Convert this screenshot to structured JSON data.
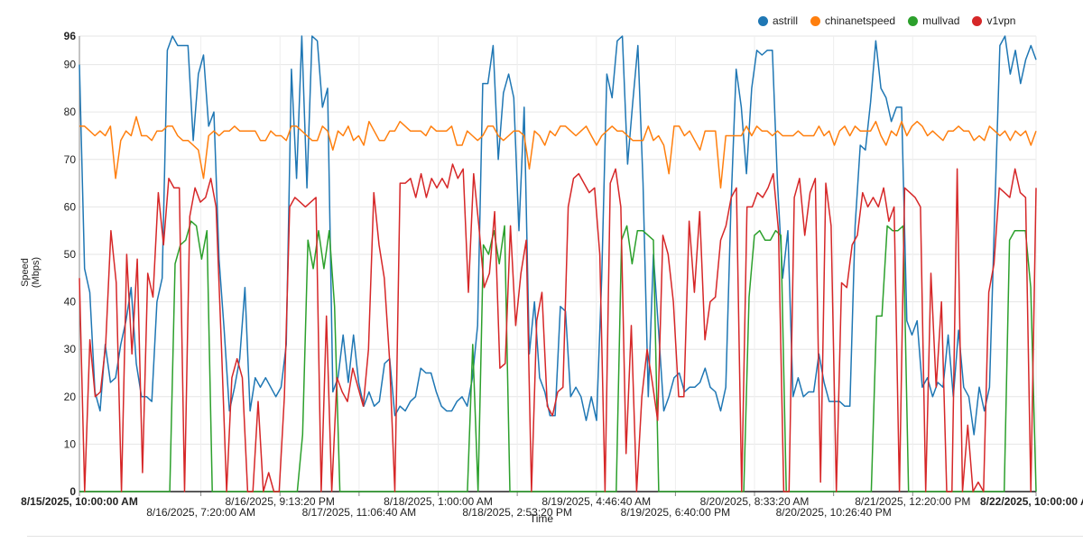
{
  "chart_data": {
    "type": "line",
    "xlabel": "Time",
    "ylabel": "Speed (Mbps)",
    "ylim": [
      0,
      96
    ],
    "yticks": [
      0,
      10,
      20,
      30,
      40,
      50,
      60,
      70,
      80,
      90,
      96
    ],
    "grid": true,
    "legend_position": "top-right",
    "x_tick_labels": [
      {
        "label": "8/15/2025, 10:00:00 AM",
        "bold": true,
        "row": 1,
        "hours": 0
      },
      {
        "label": "8/16/2025, 7:20:00 AM",
        "bold": false,
        "row": 2,
        "hours": 21.333
      },
      {
        "label": "8/16/2025, 9:13:20 PM",
        "bold": false,
        "row": 1,
        "hours": 35.222
      },
      {
        "label": "8/17/2025, 11:06:40 AM",
        "bold": false,
        "row": 2,
        "hours": 49.111
      },
      {
        "label": "8/18/2025, 1:00:00 AM",
        "bold": false,
        "row": 1,
        "hours": 63.0
      },
      {
        "label": "8/18/2025, 2:53:20 PM",
        "bold": false,
        "row": 2,
        "hours": 76.889
      },
      {
        "label": "8/19/2025, 4:46:40 AM",
        "bold": false,
        "row": 1,
        "hours": 90.778
      },
      {
        "label": "8/19/2025, 6:40:00 PM",
        "bold": false,
        "row": 2,
        "hours": 104.667
      },
      {
        "label": "8/20/2025, 8:33:20 AM",
        "bold": false,
        "row": 1,
        "hours": 118.556
      },
      {
        "label": "8/20/2025, 10:26:40 PM",
        "bold": false,
        "row": 2,
        "hours": 132.444
      },
      {
        "label": "8/21/2025, 12:20:00 PM",
        "bold": false,
        "row": 1,
        "hours": 146.333
      },
      {
        "label": "8/22/2025, 10:00:00 AM",
        "bold": true,
        "row": 1,
        "hours": 168
      }
    ],
    "x_range_hours": [
      0,
      168
    ],
    "series": [
      {
        "name": "astrill",
        "color": "#1f77b4",
        "values": [
          90,
          47,
          42,
          21,
          17,
          31,
          23,
          24,
          31,
          36,
          43,
          27,
          20,
          20,
          19,
          40,
          45,
          93,
          96,
          94,
          94,
          94,
          74,
          88,
          92,
          77,
          80,
          49,
          34,
          17,
          22,
          28,
          43,
          17,
          24,
          22,
          24,
          22,
          20,
          22,
          31,
          89,
          66,
          96,
          64,
          96,
          95,
          81,
          85,
          21,
          24,
          33,
          23,
          33,
          23,
          18,
          21,
          18,
          19,
          27,
          28,
          16,
          18,
          17,
          19,
          20,
          26,
          25,
          25,
          21,
          18,
          17,
          17,
          19,
          20,
          18,
          24,
          35,
          86,
          86,
          94,
          70,
          84,
          88,
          83,
          55,
          81,
          29,
          40,
          24,
          21,
          16,
          16,
          39,
          38,
          20,
          22,
          20,
          15,
          20,
          15,
          45,
          88,
          83,
          95,
          96,
          69,
          82,
          94,
          65,
          20,
          50,
          34,
          17,
          20,
          24,
          25,
          21,
          22,
          22,
          23,
          26,
          22,
          21,
          17,
          22,
          60,
          89,
          81,
          67,
          85,
          93,
          92,
          93,
          93,
          65,
          45,
          55,
          20,
          24,
          20,
          21,
          21,
          29,
          23,
          19,
          19,
          19,
          18,
          18,
          56,
          73,
          72,
          82,
          95,
          85,
          83,
          78,
          81,
          81,
          36,
          33,
          36,
          22,
          24,
          20,
          23,
          22,
          33,
          20,
          34,
          22,
          20,
          12,
          22,
          17,
          22,
          59,
          94,
          96,
          88,
          93,
          86,
          91,
          94,
          91
        ]
      },
      {
        "name": "chinanetspeed",
        "color": "#ff7f0e",
        "values": [
          77,
          77,
          76,
          75,
          76,
          75,
          77,
          66,
          74,
          76,
          75,
          79,
          75,
          75,
          74,
          76,
          76,
          77,
          77,
          75,
          74,
          74,
          73,
          72,
          66,
          75,
          76,
          75,
          76,
          76,
          77,
          76,
          76,
          76,
          76,
          74,
          74,
          76,
          75,
          75,
          74,
          77,
          77,
          76,
          75,
          74,
          74,
          77,
          76,
          72,
          76,
          75,
          77,
          74,
          75,
          73,
          78,
          76,
          74,
          74,
          76,
          76,
          78,
          77,
          76,
          76,
          76,
          75,
          77,
          76,
          76,
          76,
          77,
          73,
          73,
          76,
          75,
          74,
          75,
          77,
          77,
          75,
          74,
          75,
          76,
          76,
          75,
          68,
          76,
          75,
          73,
          76,
          75,
          77,
          77,
          76,
          75,
          76,
          77,
          75,
          73,
          75,
          76,
          77,
          76,
          76,
          75,
          74,
          74,
          74,
          77,
          74,
          75,
          73,
          67,
          77,
          77,
          75,
          76,
          74,
          72,
          76,
          76,
          76,
          64,
          75,
          75,
          75,
          75,
          77,
          75,
          77,
          76,
          76,
          75,
          76,
          75,
          75,
          75,
          76,
          75,
          75,
          75,
          77,
          75,
          76,
          73,
          76,
          77,
          75,
          77,
          76,
          76,
          76,
          78,
          75,
          73,
          76,
          75,
          78,
          75,
          77,
          78,
          77,
          75,
          76,
          75,
          74,
          76,
          76,
          77,
          76,
          76,
          74,
          75,
          74,
          77,
          76,
          75,
          76,
          74,
          76,
          75,
          76,
          73,
          76
        ]
      },
      {
        "name": "mullvad",
        "color": "#2ca02c",
        "values": [
          0,
          0,
          0,
          0,
          0,
          0,
          0,
          0,
          0,
          0,
          0,
          0,
          0,
          0,
          0,
          0,
          0,
          0,
          48,
          52,
          53,
          57,
          56,
          49,
          55,
          0,
          0,
          0,
          0,
          0,
          0,
          0,
          0,
          0,
          0,
          0,
          0,
          0,
          0,
          0,
          0,
          0,
          12,
          53,
          47,
          55,
          47,
          55,
          39,
          0,
          0,
          0,
          0,
          0,
          0,
          0,
          0,
          0,
          0,
          0,
          0,
          0,
          0,
          0,
          0,
          0,
          0,
          0,
          0,
          0,
          0,
          0,
          0,
          0,
          31,
          0,
          52,
          50,
          55,
          48,
          56,
          0,
          0,
          0,
          0,
          0,
          0,
          0,
          0,
          0,
          0,
          0,
          0,
          0,
          0,
          0,
          0,
          0,
          0,
          0,
          0,
          0,
          53,
          56,
          48,
          55,
          55,
          54,
          53,
          0,
          0,
          0,
          0,
          0,
          0,
          0,
          0,
          0,
          0,
          0,
          0,
          0,
          0,
          0,
          0,
          0,
          41,
          54,
          55,
          53,
          53,
          55,
          54,
          0,
          0,
          0,
          0,
          0,
          0,
          0,
          0,
          0,
          0,
          0,
          0,
          0,
          0,
          0,
          0,
          0,
          37,
          37,
          56,
          55,
          55,
          56,
          0,
          0,
          0,
          0,
          0,
          0,
          0,
          0,
          0,
          0,
          0,
          0,
          0,
          0,
          0,
          0,
          0,
          0,
          0,
          53,
          55,
          55,
          55,
          43,
          0
        ]
      },
      {
        "name": "v1vpn",
        "color": "#d62728",
        "values": [
          45,
          0,
          32,
          20,
          21,
          31,
          55,
          44,
          0,
          50,
          29,
          49,
          4,
          46,
          41,
          63,
          52,
          66,
          64,
          64,
          0,
          58,
          64,
          61,
          62,
          66,
          60,
          31,
          0,
          24,
          28,
          24,
          0,
          0,
          19,
          0,
          4,
          0,
          0,
          20,
          60,
          62,
          61,
          60,
          61,
          62,
          0,
          37,
          0,
          24,
          21,
          19,
          26,
          22,
          18,
          30,
          63,
          52,
          45,
          28,
          0,
          65,
          65,
          66,
          62,
          67,
          62,
          66,
          64,
          66,
          64,
          69,
          66,
          68,
          42,
          67,
          56,
          43,
          46,
          59,
          26,
          27,
          56,
          35,
          46,
          53,
          0,
          36,
          42,
          18,
          16,
          21,
          22,
          60,
          66,
          67,
          65,
          63,
          64,
          50,
          0,
          65,
          68,
          60,
          8,
          35,
          0,
          20,
          30,
          23,
          15,
          54,
          50,
          40,
          20,
          20,
          57,
          42,
          59,
          32,
          40,
          41,
          53,
          56,
          62,
          64,
          0,
          60,
          60,
          63,
          62,
          64,
          67,
          55,
          0,
          0,
          62,
          66,
          54,
          63,
          66,
          2,
          65,
          56,
          0,
          44,
          43,
          52,
          54,
          63,
          60,
          62,
          60,
          64,
          57,
          60,
          0,
          64,
          63,
          62,
          60,
          0,
          46,
          22,
          40,
          0,
          0,
          68,
          0,
          14,
          0,
          2,
          0,
          42,
          48,
          64,
          63,
          62,
          68,
          63,
          62,
          0,
          64
        ]
      }
    ]
  }
}
